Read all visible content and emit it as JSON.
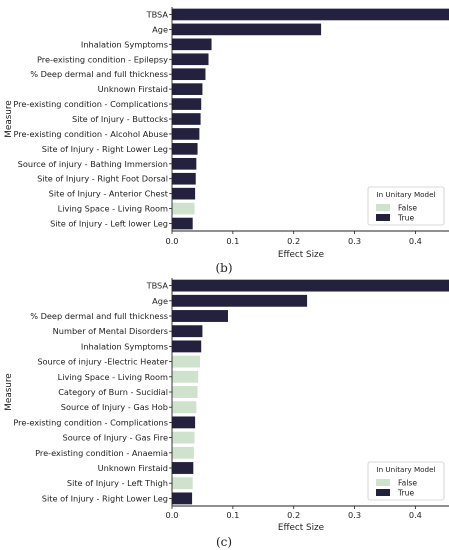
{
  "colors": {
    "true": "#24213f",
    "false": "#cfe2cc",
    "axis": "#222222"
  },
  "chart_data": [
    {
      "type": "bar",
      "orientation": "horizontal",
      "caption": "(b)",
      "xlabel": "Effect Size",
      "ylabel": "Measure",
      "xlim": [
        0,
        0.47
      ],
      "xticks": [
        0.0,
        0.1,
        0.2,
        0.3,
        0.4
      ],
      "xtick_labels": [
        "0.0",
        "0.1",
        "0.2",
        "0.3",
        "0.4"
      ],
      "legend": {
        "title": "In Unitary Model",
        "placement": "lower-right",
        "entries": [
          {
            "label": "False",
            "key": "false"
          },
          {
            "label": "True",
            "key": "true"
          }
        ]
      },
      "bars": [
        {
          "label": "TBSA",
          "value": 0.462,
          "in_unitary": true
        },
        {
          "label": "Age",
          "value": 0.245,
          "in_unitary": true
        },
        {
          "label": "Inhalation Symptoms",
          "value": 0.065,
          "in_unitary": true
        },
        {
          "label": "Pre-existing condition - Epilepsy",
          "value": 0.06,
          "in_unitary": true
        },
        {
          "label": "% Deep dermal and full thickness",
          "value": 0.055,
          "in_unitary": true
        },
        {
          "label": "Unknown Firstaid",
          "value": 0.05,
          "in_unitary": true
        },
        {
          "label": "Pre-existing condition - Complications",
          "value": 0.048,
          "in_unitary": true
        },
        {
          "label": "Site of Injury - Buttocks",
          "value": 0.047,
          "in_unitary": true
        },
        {
          "label": "Pre-existing condition - Alcohol Abuse",
          "value": 0.045,
          "in_unitary": true
        },
        {
          "label": "Site of Injury - Right Lower Leg",
          "value": 0.042,
          "in_unitary": true
        },
        {
          "label": "Source of injury - Bathing Immersion",
          "value": 0.04,
          "in_unitary": true
        },
        {
          "label": "Site of Injury - Right Foot Dorsal",
          "value": 0.039,
          "in_unitary": true
        },
        {
          "label": "Site of Injury - Anterior Chest",
          "value": 0.038,
          "in_unitary": true
        },
        {
          "label": "Living Space - Living Room",
          "value": 0.037,
          "in_unitary": false
        },
        {
          "label": "Site of Injury - Left lower Leg",
          "value": 0.034,
          "in_unitary": true
        }
      ]
    },
    {
      "type": "bar",
      "orientation": "horizontal",
      "caption": "(c)",
      "xlabel": "Effect Size",
      "ylabel": "Measure",
      "xlim": [
        0,
        0.47
      ],
      "xticks": [
        0.0,
        0.1,
        0.2,
        0.3,
        0.4
      ],
      "xtick_labels": [
        "0.0",
        "0.1",
        "0.2",
        "0.3",
        "0.4"
      ],
      "legend": {
        "title": "In Unitary Model",
        "placement": "lower-right",
        "entries": [
          {
            "label": "False",
            "key": "false"
          },
          {
            "label": "True",
            "key": "true"
          }
        ]
      },
      "bars": [
        {
          "label": "TBSA",
          "value": 0.458,
          "in_unitary": true
        },
        {
          "label": "Age",
          "value": 0.222,
          "in_unitary": true
        },
        {
          "label": "% Deep dermal and full thickness",
          "value": 0.092,
          "in_unitary": true
        },
        {
          "label": "Number of Mental Disorders",
          "value": 0.05,
          "in_unitary": true
        },
        {
          "label": "Inhalation Symptoms",
          "value": 0.048,
          "in_unitary": true
        },
        {
          "label": "Source of injury -Electric Heater",
          "value": 0.046,
          "in_unitary": false
        },
        {
          "label": "Living Space - Living Room",
          "value": 0.043,
          "in_unitary": false
        },
        {
          "label": "Category of Burn - Sucidial",
          "value": 0.042,
          "in_unitary": false
        },
        {
          "label": "Source of Injury - Gas Hob",
          "value": 0.04,
          "in_unitary": false
        },
        {
          "label": "Pre-existing condition - Complications",
          "value": 0.038,
          "in_unitary": true
        },
        {
          "label": "Source of Injury - Gas Fire",
          "value": 0.037,
          "in_unitary": false
        },
        {
          "label": "Pre-existing condition - Anaemia",
          "value": 0.036,
          "in_unitary": false
        },
        {
          "label": "Unknown Firstaid",
          "value": 0.035,
          "in_unitary": true
        },
        {
          "label": "Site of Injury - Left Thigh",
          "value": 0.034,
          "in_unitary": false
        },
        {
          "label": "Site of Injury - Right Lower Leg",
          "value": 0.033,
          "in_unitary": true
        }
      ]
    }
  ]
}
